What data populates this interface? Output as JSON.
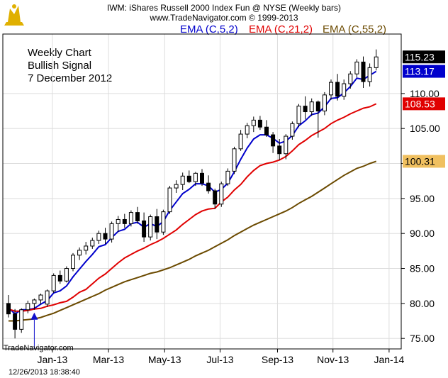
{
  "header": {
    "title": "IWM:  iShares Russell 2000 Index Fun @ NYSE  (Weekly bars)",
    "copyright": "www.TradeNavigator.com © 1999-2013"
  },
  "annotation": {
    "line1": "Weekly Chart",
    "line2": "Bullish Signal",
    "line3": "7 December 2012"
  },
  "watermark": "TradeNavigator.com",
  "footer_timestamp": "12/26/2013 18:38:40",
  "colors": {
    "ema5": "#0000cc",
    "ema21": "#e00000",
    "ema55": "#6b4a00",
    "candle_up_fill": "#ffffff",
    "candle_down_fill": "#000000",
    "arrow": "#1010cc",
    "grid": "#dddddd",
    "last_price_bg": "#000000",
    "logo": "#e0b000"
  },
  "chart_data": {
    "type": "candlestick",
    "title": "IWM:  iShares Russell 2000 Index Fun @ NYSE  (Weekly bars)",
    "xlabel": "",
    "ylabel": "",
    "ylim": [
      73.5,
      118.5
    ],
    "y_ticks": [
      "75.00",
      "80.00",
      "85.00",
      "90.00",
      "95.00",
      "100.00",
      "105.00",
      "110.00"
    ],
    "x_ticks": [
      {
        "label": "Jan-13",
        "week": 6.8
      },
      {
        "label": "Mar-13",
        "week": 15.5
      },
      {
        "label": "May-13",
        "week": 24.2
      },
      {
        "label": "Jul-13",
        "week": 32.8
      },
      {
        "label": "Sep-13",
        "week": 41.7
      },
      {
        "label": "Nov-13",
        "week": 50.3
      },
      {
        "label": "Jan-14",
        "week": 59.0
      }
    ],
    "grid": true,
    "legend": "top-right",
    "candles": [
      [
        80.0,
        81.2,
        78.0,
        78.5
      ],
      [
        78.5,
        79.2,
        75.0,
        76.3
      ],
      [
        76.3,
        79.3,
        75.8,
        79.1
      ],
      [
        79.1,
        80.4,
        78.6,
        80.0
      ],
      [
        80.0,
        80.7,
        79.1,
        80.5
      ],
      [
        80.5,
        81.4,
        79.9,
        81.2
      ],
      [
        79.9,
        82.0,
        79.5,
        81.8
      ],
      [
        81.8,
        84.3,
        81.5,
        84.0
      ],
      [
        84.0,
        84.7,
        82.8,
        83.2
      ],
      [
        83.2,
        85.3,
        83.0,
        85.0
      ],
      [
        85.0,
        87.2,
        84.6,
        86.9
      ],
      [
        86.9,
        88.0,
        86.2,
        87.6
      ],
      [
        87.6,
        88.8,
        87.0,
        88.2
      ],
      [
        88.2,
        89.4,
        87.8,
        89.0
      ],
      [
        89.0,
        90.4,
        88.5,
        90.0
      ],
      [
        90.0,
        90.8,
        88.5,
        89.2
      ],
      [
        89.2,
        91.7,
        88.7,
        91.4
      ],
      [
        91.4,
        92.5,
        90.2,
        92.0
      ],
      [
        92.0,
        92.8,
        90.8,
        91.4
      ],
      [
        91.4,
        93.3,
        91.0,
        93.0
      ],
      [
        93.0,
        93.8,
        91.4,
        91.8
      ],
      [
        91.8,
        93.0,
        88.8,
        89.5
      ],
      [
        89.5,
        92.7,
        89.0,
        92.4
      ],
      [
        92.4,
        93.5,
        89.2,
        90.2
      ],
      [
        90.2,
        93.4,
        89.8,
        93.1
      ],
      [
        93.1,
        96.8,
        92.8,
        96.5
      ],
      [
        96.5,
        97.6,
        95.8,
        97.0
      ],
      [
        97.0,
        98.7,
        96.2,
        98.2
      ],
      [
        98.2,
        99.0,
        97.2,
        97.4
      ],
      [
        97.4,
        98.8,
        96.8,
        98.6
      ],
      [
        98.6,
        99.2,
        96.8,
        97.2
      ],
      [
        97.2,
        98.3,
        95.7,
        96.1
      ],
      [
        96.1,
        96.4,
        93.5,
        94.2
      ],
      [
        94.2,
        97.4,
        93.8,
        97.1
      ],
      [
        97.1,
        99.3,
        96.8,
        98.9
      ],
      [
        98.9,
        102.4,
        98.5,
        102.1
      ],
      [
        102.1,
        104.8,
        101.8,
        104.2
      ],
      [
        104.2,
        105.8,
        103.6,
        105.4
      ],
      [
        105.4,
        106.7,
        104.5,
        106.2
      ],
      [
        106.2,
        106.8,
        104.8,
        105.2
      ],
      [
        105.2,
        106.2,
        103.8,
        104.1
      ],
      [
        104.1,
        104.5,
        101.5,
        102.5
      ],
      [
        102.5,
        103.5,
        100.5,
        101.4
      ],
      [
        101.4,
        104.2,
        100.6,
        103.9
      ],
      [
        103.9,
        106.0,
        103.4,
        105.7
      ],
      [
        105.7,
        108.5,
        105.2,
        108.2
      ],
      [
        108.2,
        109.6,
        106.3,
        107.4
      ],
      [
        107.4,
        109.3,
        106.8,
        108.8
      ],
      [
        108.8,
        109.0,
        103.7,
        107.5
      ],
      [
        107.5,
        110.2,
        106.9,
        109.8
      ],
      [
        109.8,
        112.0,
        109.1,
        111.6
      ],
      [
        111.6,
        112.8,
        109.0,
        109.6
      ],
      [
        109.6,
        112.0,
        109.1,
        111.4
      ],
      [
        111.4,
        113.2,
        110.7,
        112.8
      ],
      [
        112.8,
        114.9,
        112.3,
        114.5
      ],
      [
        114.5,
        115.3,
        110.8,
        111.7
      ],
      [
        111.7,
        114.3,
        111.0,
        113.7
      ],
      [
        113.7,
        116.3,
        113.3,
        115.23
      ]
    ],
    "series": [
      {
        "name": "EMA (C,5,2)",
        "label": "113.17",
        "values": [
          79.4,
          78.5,
          79.1,
          79.1,
          79.3,
          79.9,
          80.4,
          81.5,
          81.8,
          82.5,
          83.8,
          84.9,
          86.0,
          87.0,
          88.1,
          88.4,
          89.4,
          90.3,
          90.6,
          91.4,
          91.6,
          90.9,
          91.4,
          91.0,
          91.7,
          93.3,
          94.5,
          95.7,
          96.3,
          97.1,
          97.1,
          96.8,
          95.9,
          96.3,
          97.2,
          98.8,
          100.6,
          102.2,
          103.5,
          104.1,
          104.1,
          103.6,
          102.9,
          103.2,
          104.0,
          105.4,
          106.1,
          107.0,
          107.2,
          108.1,
          109.3,
          109.4,
          110.1,
          111.0,
          112.2,
          112.0,
          112.6,
          113.17
        ]
      },
      {
        "name": "EMA (C,21,2)",
        "label": "108.53",
        "values": [
          79.2,
          78.9,
          78.9,
          79.0,
          79.2,
          79.3,
          79.6,
          79.8,
          80.1,
          80.3,
          80.9,
          81.6,
          82.0,
          82.8,
          83.6,
          84.2,
          85.0,
          85.8,
          86.5,
          87.0,
          87.5,
          87.9,
          88.4,
          88.8,
          89.3,
          89.9,
          90.5,
          91.3,
          92.0,
          92.7,
          93.2,
          93.5,
          93.6,
          94.5,
          95.2,
          96.2,
          97.0,
          98.1,
          99.0,
          99.7,
          100.0,
          100.2,
          100.5,
          101.0,
          101.8,
          102.7,
          103.3,
          104.0,
          104.5,
          105.0,
          105.7,
          106.2,
          106.6,
          107.1,
          107.5,
          107.9,
          108.1,
          108.53
        ]
      },
      {
        "name": "EMA (C,55,2)",
        "label": "100.31",
        "values": [
          77.5,
          77.5,
          77.6,
          77.7,
          77.8,
          78.0,
          78.3,
          78.6,
          79.0,
          79.4,
          79.8,
          80.2,
          80.6,
          81.0,
          81.4,
          81.9,
          82.3,
          82.7,
          83.1,
          83.4,
          83.7,
          84.0,
          84.3,
          84.5,
          84.8,
          85.1,
          85.5,
          85.9,
          86.3,
          86.8,
          87.2,
          87.6,
          88.1,
          88.6,
          89.1,
          89.7,
          90.2,
          90.7,
          91.2,
          91.6,
          92.0,
          92.4,
          92.8,
          93.2,
          93.7,
          94.3,
          94.8,
          95.3,
          95.9,
          96.5,
          97.1,
          97.7,
          98.3,
          98.8,
          99.3,
          99.6,
          100.0,
          100.31
        ]
      }
    ],
    "last_price": "115.23",
    "signal_arrow": {
      "week": 4,
      "price": 79.5
    }
  }
}
